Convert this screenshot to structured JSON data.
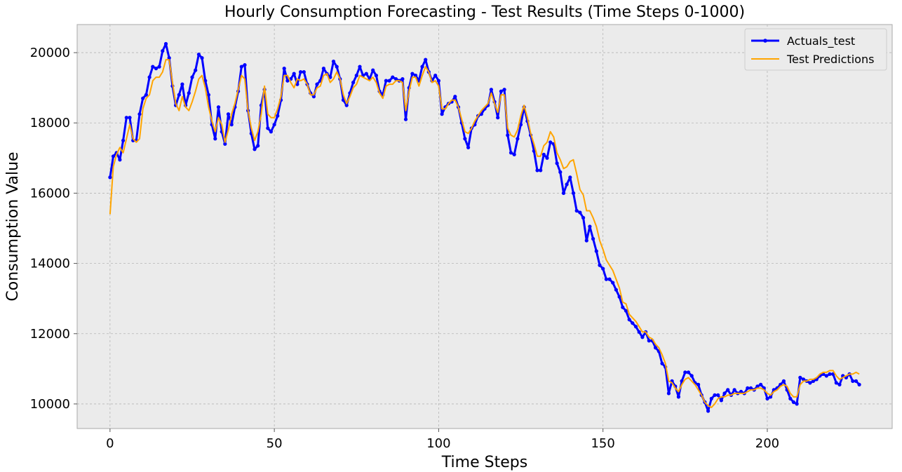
{
  "chart_data": {
    "type": "line",
    "title": "Hourly Consumption Forecasting - Test Results (Time Steps 0-1000)",
    "xlabel": "Time Steps",
    "ylabel": "Consumption Value",
    "xlim": [
      -10,
      238
    ],
    "ylim": [
      9300,
      20800
    ],
    "xticks": [
      0,
      50,
      100,
      150,
      200
    ],
    "yticks": [
      10000,
      12000,
      14000,
      16000,
      18000,
      20000
    ],
    "grid": true,
    "legend_position": "top-right",
    "series": [
      {
        "name": "Actuals_test",
        "color": "#0000ff",
        "marker": "dot",
        "values": [
          16450,
          17050,
          17150,
          16950,
          17500,
          18150,
          18150,
          17500,
          17500,
          18250,
          18700,
          18800,
          19300,
          19600,
          19550,
          19600,
          20050,
          20250,
          19850,
          19050,
          18500,
          18800,
          19100,
          18500,
          18850,
          19300,
          19500,
          19950,
          19850,
          19200,
          18800,
          17950,
          17550,
          18450,
          17750,
          17400,
          18250,
          17950,
          18450,
          18900,
          19600,
          19650,
          18350,
          17700,
          17250,
          17350,
          18500,
          18950,
          17850,
          17750,
          17950,
          18200,
          18650,
          19550,
          19200,
          19250,
          19400,
          19100,
          19450,
          19450,
          19100,
          18850,
          18750,
          19100,
          19200,
          19550,
          19400,
          19300,
          19750,
          19600,
          19250,
          18650,
          18500,
          18850,
          19150,
          19350,
          19600,
          19350,
          19400,
          19250,
          19500,
          19350,
          18900,
          18800,
          19200,
          19200,
          19300,
          19250,
          19200,
          19250,
          18100,
          19000,
          19400,
          19350,
          19200,
          19600,
          19800,
          19450,
          19200,
          19350,
          19200,
          18250,
          18450,
          18550,
          18600,
          18750,
          18450,
          18000,
          17550,
          17300,
          17850,
          17950,
          18200,
          18250,
          18400,
          18500,
          18950,
          18600,
          18150,
          18900,
          18950,
          17650,
          17150,
          17100,
          17550,
          17950,
          18450,
          18050,
          17650,
          17200,
          16650,
          16650,
          17100,
          17000,
          17450,
          17400,
          16850,
          16600,
          16000,
          16250,
          16450,
          16000,
          15500,
          15450,
          15300,
          14650,
          15050,
          14700,
          14350,
          13950,
          13850,
          13550,
          13550,
          13450,
          13250,
          13050,
          12750,
          12650,
          12400,
          12300,
          12200,
          12050,
          11900,
          12050,
          11800,
          11800,
          11600,
          11500,
          11150,
          11050,
          10300,
          10650,
          10500,
          10200,
          10650,
          10900,
          10900,
          10800,
          10600,
          10550,
          10250,
          10050,
          9800,
          10150,
          10250,
          10250,
          10100,
          10300,
          10400,
          10250,
          10400,
          10300,
          10350,
          10300,
          10450,
          10450,
          10400,
          10500,
          10550,
          10450,
          10150,
          10200,
          10400,
          10450,
          10550,
          10650,
          10400,
          10150,
          10050,
          10000,
          10750,
          10700,
          10650,
          10600,
          10650,
          10700,
          10800,
          10850,
          10800,
          10850,
          10850,
          10600,
          10550,
          10800,
          10750,
          10850,
          10650,
          10650,
          10550
        ]
      },
      {
        "name": "Test Predictions",
        "color": "#ffa500",
        "marker": "none",
        "values": [
          15400,
          16750,
          17100,
          17300,
          17150,
          17550,
          17950,
          17550,
          17450,
          17550,
          18400,
          18700,
          18800,
          19200,
          19300,
          19300,
          19450,
          19800,
          19800,
          19150,
          18550,
          18350,
          18750,
          18450,
          18350,
          18600,
          18900,
          19250,
          19350,
          19000,
          18450,
          18050,
          17750,
          18150,
          17950,
          17450,
          17800,
          18250,
          18550,
          18950,
          19350,
          19250,
          18350,
          17850,
          17500,
          17750,
          18250,
          19050,
          18250,
          18150,
          18150,
          18400,
          18750,
          19350,
          19350,
          19150,
          19000,
          19250,
          19200,
          19250,
          19100,
          18800,
          18800,
          19000,
          19050,
          19350,
          19400,
          19150,
          19250,
          19450,
          19250,
          18800,
          18550,
          18750,
          19000,
          19100,
          19350,
          19300,
          19250,
          19200,
          19300,
          19150,
          18850,
          18700,
          19050,
          19100,
          19100,
          19200,
          19200,
          19150,
          18350,
          18900,
          19300,
          19300,
          19050,
          19350,
          19600,
          19450,
          19150,
          19200,
          19050,
          18400,
          18400,
          18550,
          18650,
          18650,
          18450,
          18100,
          17750,
          17700,
          17850,
          18050,
          18200,
          18350,
          18450,
          18550,
          18850,
          18550,
          18300,
          18800,
          18800,
          17850,
          17650,
          17600,
          17800,
          18200,
          18500,
          18150,
          17700,
          17400,
          17050,
          17050,
          17350,
          17450,
          17750,
          17600,
          17150,
          16950,
          16700,
          16750,
          16900,
          16950,
          16550,
          16100,
          15950,
          15500,
          15500,
          15300,
          15050,
          14650,
          14400,
          14100,
          13950,
          13800,
          13550,
          13300,
          12900,
          12850,
          12550,
          12450,
          12350,
          12200,
          12050,
          12050,
          11900,
          11850,
          11700,
          11600,
          11400,
          11150,
          10650,
          10600,
          10450,
          10350,
          10550,
          10700,
          10750,
          10650,
          10550,
          10400,
          10250,
          10050,
          9950,
          9900,
          10000,
          10150,
          10200,
          10200,
          10250,
          10250,
          10300,
          10300,
          10300,
          10300,
          10350,
          10400,
          10400,
          10450,
          10450,
          10400,
          10300,
          10250,
          10350,
          10400,
          10500,
          10550,
          10500,
          10300,
          10200,
          10200,
          10550,
          10650,
          10650,
          10700,
          10700,
          10750,
          10850,
          10900,
          10900,
          10950,
          10950,
          10800,
          10700,
          10750,
          10800,
          10850,
          10850,
          10900,
          10850
        ]
      }
    ]
  }
}
